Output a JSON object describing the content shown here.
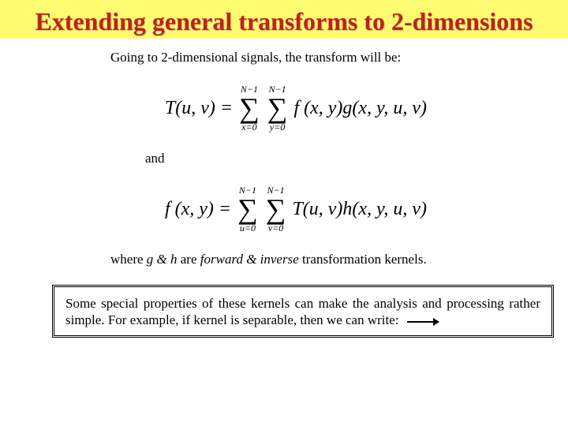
{
  "title": "Extending general transforms to 2-dimensions",
  "intro": "Going to 2-dimensional signals, the transform will be:",
  "eq1": {
    "lhs": "T(u, v) = ",
    "sum1_top": "N−1",
    "sum1_bottom": "x=0",
    "sum2_top": "N−1",
    "sum2_bottom": "y=0",
    "rhs": " f (x, y)g(x, y, u, v)"
  },
  "and": "and",
  "eq2": {
    "lhs": "f (x, y) = ",
    "sum1_top": "N−1",
    "sum1_bottom": "u=0",
    "sum2_top": "N−1",
    "sum2_bottom": "v=0",
    "rhs": " T(u, v)h(x, y, u, v)"
  },
  "note_pre": "where ",
  "note_gh": "g & h",
  "note_mid": " are ",
  "note_fi": "forward & inverse",
  "note_post": " transformation kernels.",
  "boxed": "Some special properties of these kernels can make the analysis and processing rather simple. For example, if kernel is separable, then we can write:",
  "colors": {
    "banner_bg": "#fffc72",
    "title_color": "#c0201e",
    "bg": "#ffffff"
  }
}
